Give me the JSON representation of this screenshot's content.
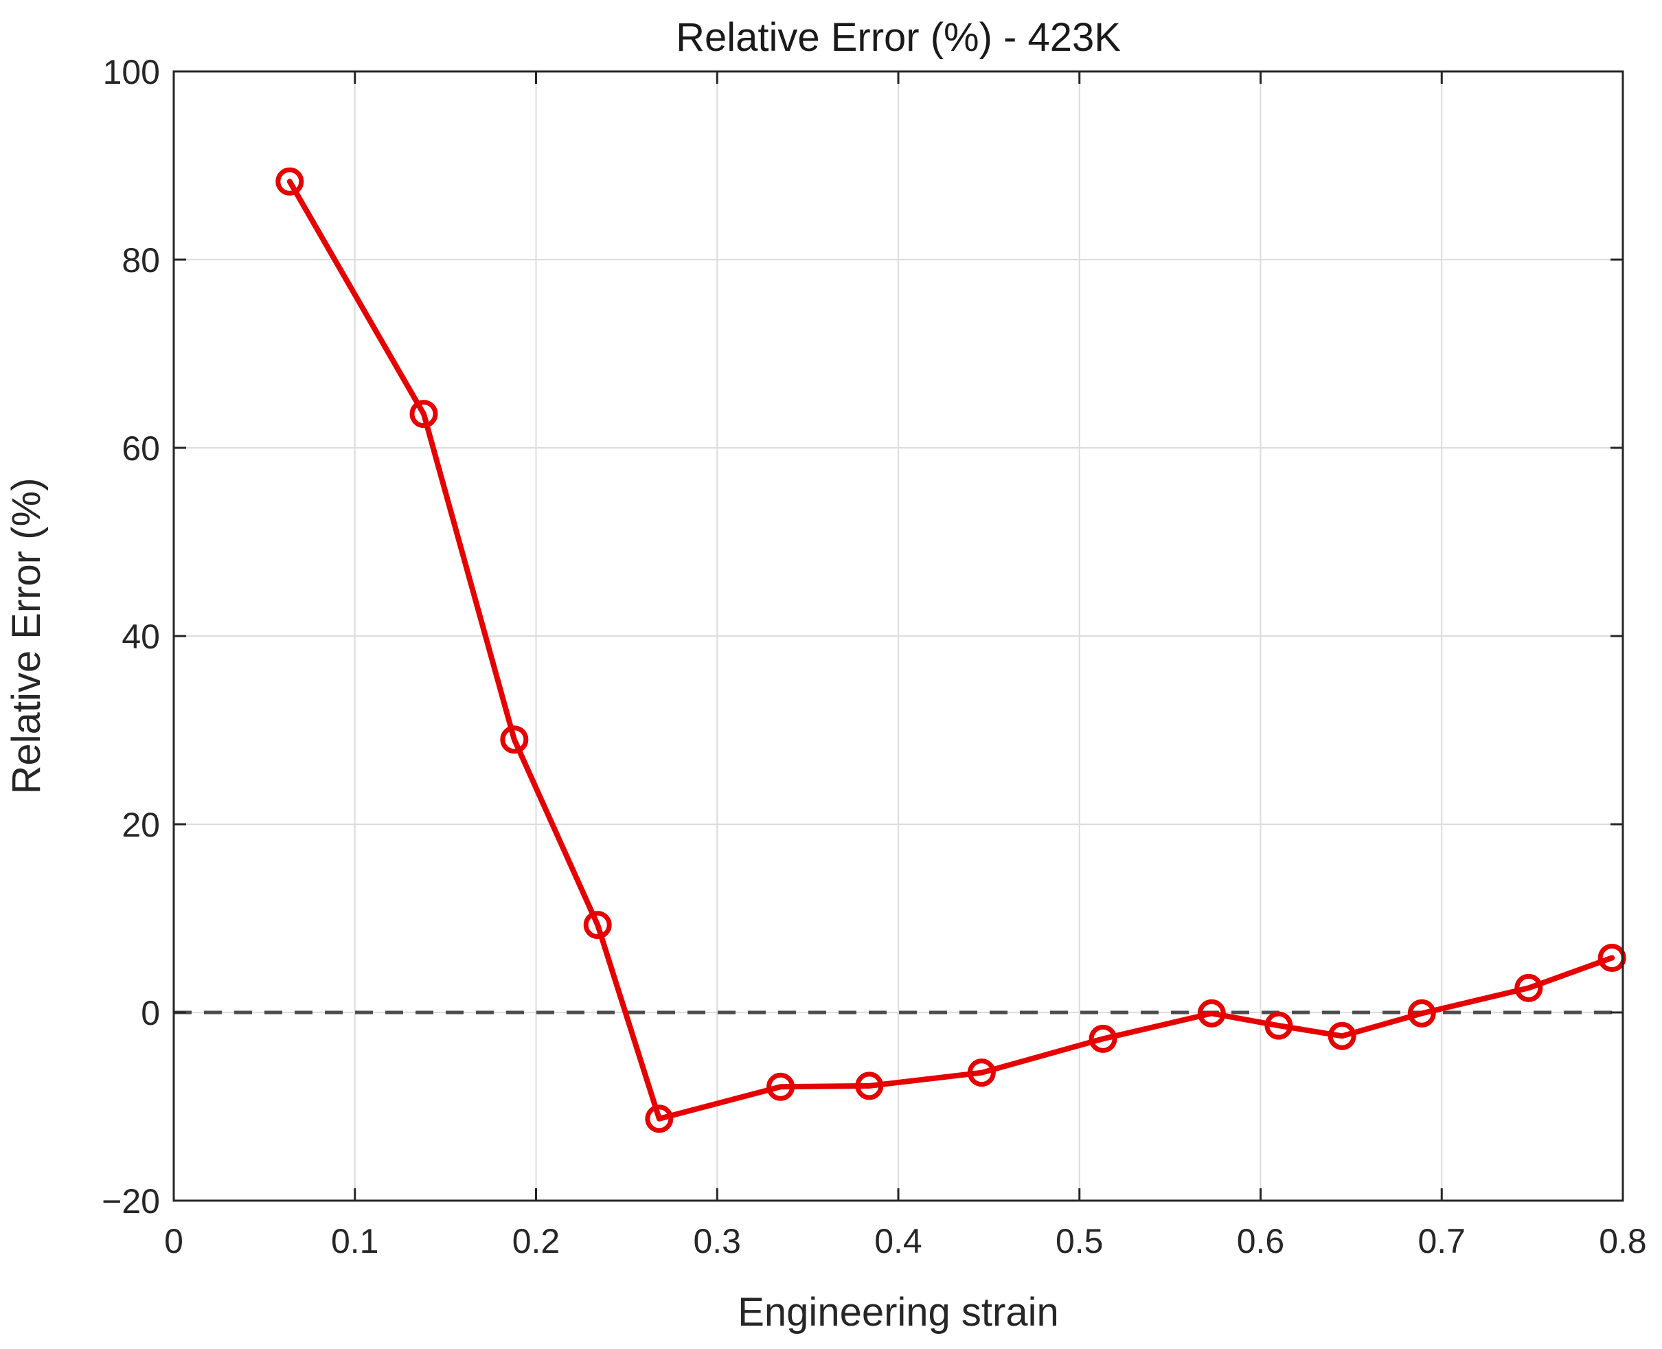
{
  "chart_data": {
    "type": "line",
    "title": "Relative Error (%) - 423K",
    "xlabel": "Engineering strain",
    "ylabel": "Relative Error (%)",
    "xlim": [
      0,
      0.8
    ],
    "ylim": [
      -20,
      100
    ],
    "x_ticks": [
      0,
      0.1,
      0.2,
      0.3,
      0.4,
      0.5,
      0.6,
      0.7,
      0.8
    ],
    "x_tick_labels": [
      "0",
      "0.1",
      "0.2",
      "0.3",
      "0.4",
      "0.5",
      "0.6",
      "0.7",
      "0.8"
    ],
    "y_ticks": [
      -20,
      0,
      20,
      40,
      60,
      80,
      100
    ],
    "y_tick_labels": [
      "−20",
      "0",
      "20",
      "40",
      "60",
      "80",
      "100"
    ],
    "grid": true,
    "reference_line": {
      "y": 0,
      "style": "dashed",
      "color": "#4d4d4d"
    },
    "series": [
      {
        "color": "#e60000",
        "marker": "circle",
        "x": [
          0.064,
          0.138,
          0.188,
          0.234,
          0.268,
          0.335,
          0.384,
          0.446,
          0.513,
          0.573,
          0.61,
          0.645,
          0.689,
          0.748,
          0.794
        ],
        "y": [
          88.3,
          63.6,
          29.0,
          9.3,
          -11.3,
          -7.9,
          -7.8,
          -6.4,
          -2.8,
          -0.1,
          -1.4,
          -2.5,
          -0.1,
          2.6,
          5.8
        ]
      }
    ]
  }
}
